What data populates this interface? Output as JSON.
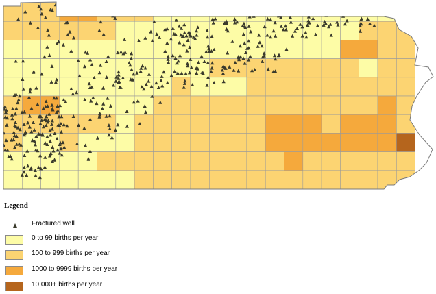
{
  "legend": {
    "title": "Legend",
    "well": {
      "label": "Fractured well",
      "icon": "triangle-icon",
      "color": "#3a3a2c"
    },
    "classes": [
      {
        "label": "0 to 99 births per year",
        "color": "#fdfca6"
      },
      {
        "label": "100 to 999 births per year",
        "color": "#fcd472"
      },
      {
        "label": "1000 to 9999 births per year",
        "color": "#f5a93c"
      },
      {
        "label": "10,000+ births per year",
        "color": "#b5651d"
      }
    ]
  },
  "map": {
    "columns": 22,
    "rows": 10,
    "grid_classes": [
      "1112211100000000000000",
      "1111110000000000000111",
      "0000000000000000002211",
      "0000000000011111111011",
      "0000000001000111111111",
      "1220000011111111111121",
      "1111110111111122212221",
      "1001000111111122222223",
      "0000011111111112111111",
      "0000000111111111111111"
    ],
    "well_clusters": [
      {
        "cx": 10,
        "cy": 2.5,
        "rx": 1.4,
        "ry": 1.5,
        "n": 55
      },
      {
        "cx": 3.5,
        "cy": 1.0,
        "rx": 3.0,
        "ry": 1.0,
        "n": 25
      },
      {
        "cx": 8.0,
        "cy": 1.2,
        "rx": 2.5,
        "ry": 1.0,
        "n": 18
      },
      {
        "cx": 15.5,
        "cy": 1.0,
        "rx": 4.5,
        "ry": 0.9,
        "n": 110
      },
      {
        "cx": 13.0,
        "cy": 3.0,
        "rx": 2.5,
        "ry": 1.0,
        "n": 45
      },
      {
        "cx": 9.0,
        "cy": 4.0,
        "rx": 3.5,
        "ry": 0.6,
        "n": 40
      },
      {
        "cx": 4.0,
        "cy": 3.5,
        "rx": 3.5,
        "ry": 1.5,
        "n": 45
      },
      {
        "cx": 1.5,
        "cy": 7.0,
        "rx": 1.8,
        "ry": 2.5,
        "n": 130
      },
      {
        "cx": 4.0,
        "cy": 6.5,
        "rx": 2.2,
        "ry": 2.0,
        "n": 45
      },
      {
        "cx": 6.5,
        "cy": 5.0,
        "rx": 2.0,
        "ry": 1.8,
        "n": 25
      }
    ]
  }
}
